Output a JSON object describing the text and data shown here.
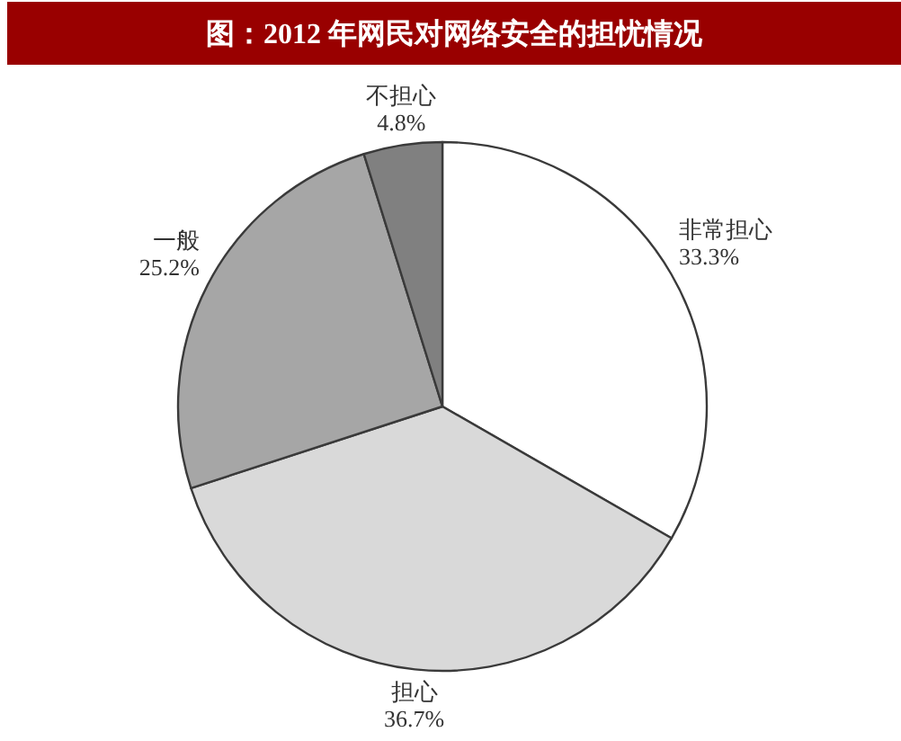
{
  "chart_data": {
    "type": "pie",
    "title": "图：2012 年网民对网络安全的担忧情况",
    "categories": [
      "非常担心",
      "担心",
      "一般",
      "不担心"
    ],
    "values": [
      33.3,
      36.7,
      25.2,
      4.8
    ],
    "colors": [
      "#ffffff",
      "#d9d9d9",
      "#a6a6a6",
      "#808080"
    ],
    "value_labels": [
      "33.3%",
      "36.7%",
      "25.2%",
      "4.8%"
    ]
  }
}
